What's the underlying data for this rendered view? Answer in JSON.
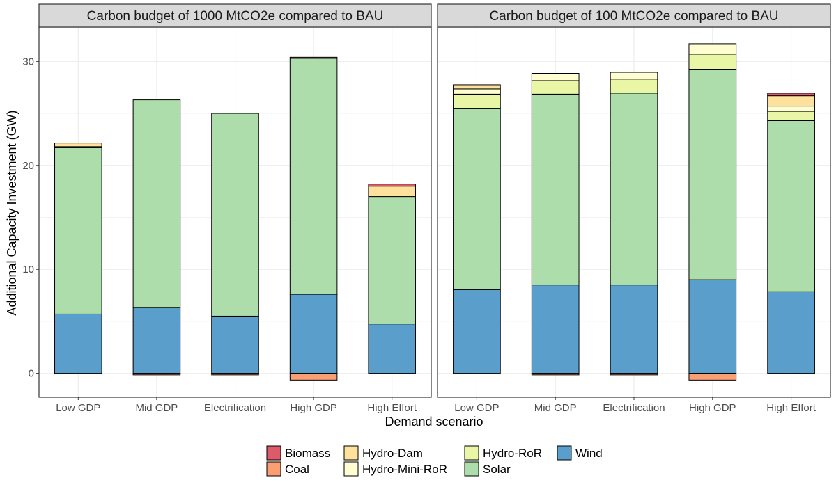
{
  "chart_data": [
    {
      "type": "bar",
      "stacked": true,
      "title": "Carbon budget of 1000 MtCO2e compared to BAU",
      "xlabel": "Demand scenario",
      "ylabel": "Additional Capacity Investment (GW)",
      "ylim": [
        -2.3,
        33.3
      ],
      "yticks": [
        0,
        10,
        20,
        30
      ],
      "grid": true,
      "categories": [
        "Low GDP",
        "Mid GDP",
        "Electrification",
        "High GDP",
        "High Effort"
      ],
      "series": [
        {
          "name": "Wind",
          "values": [
            5.7,
            6.35,
            5.5,
            7.6,
            4.75
          ]
        },
        {
          "name": "Solar",
          "values": [
            16.0,
            19.95,
            19.5,
            22.7,
            12.25
          ]
        },
        {
          "name": "Hydro-RoR",
          "values": [
            0.1,
            0.0,
            0.0,
            0.0,
            0.0
          ]
        },
        {
          "name": "Hydro-Mini-RoR",
          "values": [
            0.0,
            0.0,
            0.0,
            0.0,
            0.0
          ]
        },
        {
          "name": "Hydro-Dam",
          "values": [
            0.35,
            0.0,
            0.0,
            0.0,
            1.0
          ]
        },
        {
          "name": "Coal",
          "values": [
            0.0,
            -0.15,
            -0.15,
            -0.65,
            0.0
          ]
        },
        {
          "name": "Biomass",
          "values": [
            0.0,
            0.0,
            0.0,
            0.1,
            0.2
          ]
        }
      ]
    },
    {
      "type": "bar",
      "stacked": true,
      "title": "Carbon budget of 100 MtCO2e compared to BAU",
      "xlabel": "Demand scenario",
      "ylabel": "Additional Capacity Investment (GW)",
      "ylim": [
        -2.3,
        33.3
      ],
      "yticks": [
        0,
        10,
        20,
        30
      ],
      "grid": true,
      "categories": [
        "Low GDP",
        "Mid GDP",
        "Electrification",
        "High GDP",
        "High Effort"
      ],
      "series": [
        {
          "name": "Wind",
          "values": [
            8.05,
            8.5,
            8.5,
            9.0,
            7.85
          ]
        },
        {
          "name": "Solar",
          "values": [
            17.45,
            18.35,
            18.45,
            20.25,
            16.45
          ]
        },
        {
          "name": "Hydro-RoR",
          "values": [
            1.35,
            1.3,
            1.35,
            1.45,
            0.9
          ]
        },
        {
          "name": "Hydro-Mini-RoR",
          "values": [
            0.5,
            0.7,
            0.65,
            1.0,
            0.5
          ]
        },
        {
          "name": "Hydro-Dam",
          "values": [
            0.4,
            0.0,
            0.0,
            0.0,
            1.0
          ]
        },
        {
          "name": "Coal",
          "values": [
            0.0,
            -0.15,
            -0.15,
            -0.65,
            0.0
          ]
        },
        {
          "name": "Biomass",
          "values": [
            0.0,
            0.0,
            0.0,
            0.0,
            0.25
          ]
        }
      ]
    }
  ],
  "legend": {
    "placement": "bottom",
    "items": [
      {
        "name": "Biomass",
        "color": "#dc5a6a"
      },
      {
        "name": "Coal",
        "color": "#fa9e74"
      },
      {
        "name": "Hydro-Dam",
        "color": "#fde19c"
      },
      {
        "name": "Hydro-Mini-RoR",
        "color": "#fefed2"
      },
      {
        "name": "Hydro-RoR",
        "color": "#e8f6a6"
      },
      {
        "name": "Solar",
        "color": "#acddaa"
      },
      {
        "name": "Wind",
        "color": "#5a9fcb"
      }
    ]
  },
  "colors": {
    "Biomass": "#dc5a6a",
    "Coal": "#fa9e74",
    "Hydro-Dam": "#fde19c",
    "Hydro-Mini-RoR": "#fefed2",
    "Hydro-RoR": "#e8f6a6",
    "Solar": "#acddaa",
    "Wind": "#5a9fcb",
    "strip": "#d9d9d9",
    "grid": "#ebebeb",
    "border": "#333333"
  }
}
